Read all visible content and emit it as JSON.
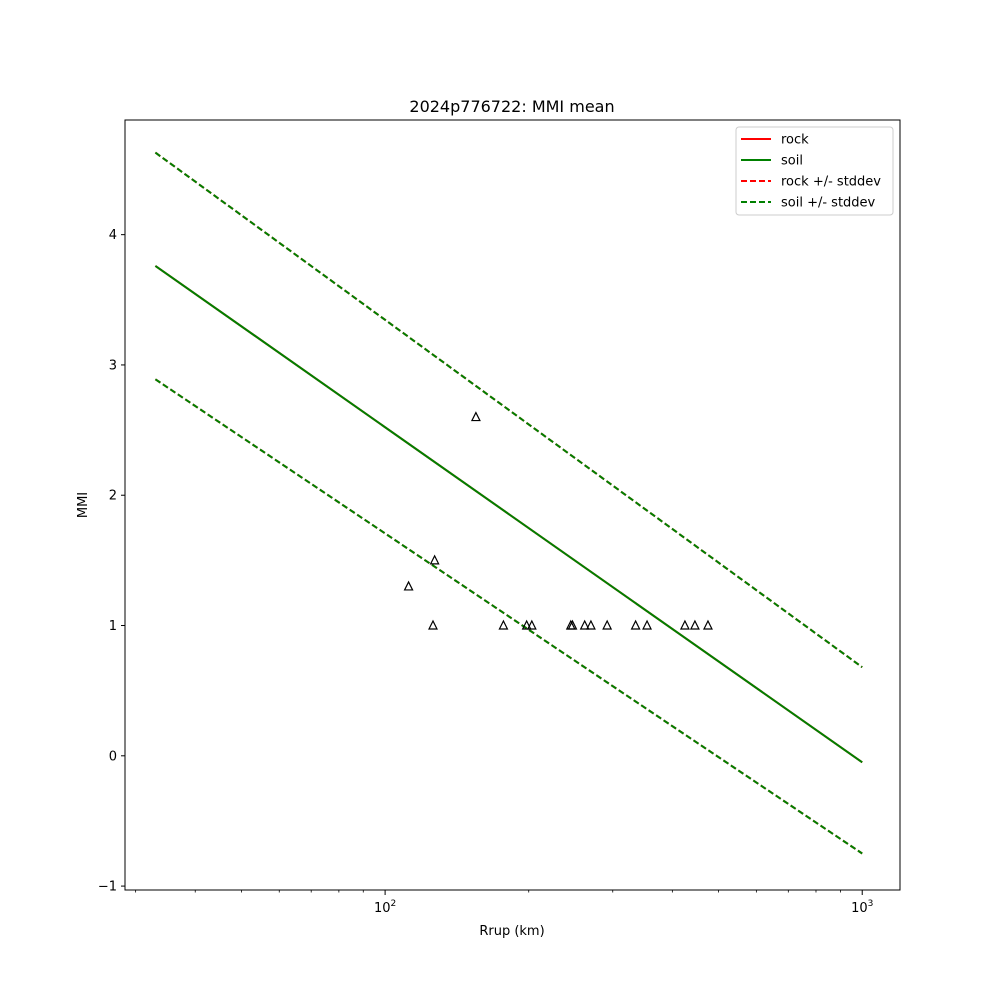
{
  "chart_data": {
    "type": "line",
    "title": "2024p776722: MMI mean",
    "xlabel": "Rrup (km)",
    "ylabel": "MMI",
    "xscale": "log",
    "xlim": [
      28.5,
      1200
    ],
    "ylim": [
      -1.03,
      4.88
    ],
    "xticks": [
      {
        "value": 100,
        "base": "10",
        "exp": "2"
      },
      {
        "value": 1000,
        "base": "10",
        "exp": "3"
      }
    ],
    "yticks": [
      {
        "value": -1,
        "label": "−1"
      },
      {
        "value": 0,
        "label": "0"
      },
      {
        "value": 1,
        "label": "1"
      },
      {
        "value": 2,
        "label": "2"
      },
      {
        "value": 3,
        "label": "3"
      },
      {
        "value": 4,
        "label": "4"
      }
    ],
    "grid": false,
    "legend_position": "top-right",
    "series": [
      {
        "name": "rock",
        "color": "#ff0000",
        "dash": "solid",
        "x": [
          33,
          1000
        ],
        "y": [
          3.76,
          -0.05
        ]
      },
      {
        "name": "soil",
        "color": "#008000",
        "dash": "solid",
        "x": [
          33,
          1000
        ],
        "y": [
          3.76,
          -0.05
        ]
      },
      {
        "name": "rock +/- stddev",
        "color": "#ff0000",
        "dash": "dashed",
        "x": [
          33,
          1000
        ],
        "y": [
          4.63,
          0.68
        ],
        "x2": [
          33,
          1000
        ],
        "y2": [
          2.89,
          -0.75
        ]
      },
      {
        "name": "soil +/- stddev",
        "color": "#008000",
        "dash": "dashed",
        "x": [
          33,
          1000
        ],
        "y": [
          4.63,
          0.68
        ],
        "x2": [
          33,
          1000
        ],
        "y2": [
          2.89,
          -0.75
        ]
      }
    ],
    "observations": {
      "marker": "triangle",
      "color": "#000000",
      "points": [
        {
          "x": 112,
          "y": 1.3
        },
        {
          "x": 127,
          "y": 1.5
        },
        {
          "x": 126,
          "y": 1.0
        },
        {
          "x": 155,
          "y": 2.6
        },
        {
          "x": 177,
          "y": 1.0
        },
        {
          "x": 198,
          "y": 1.0
        },
        {
          "x": 203,
          "y": 1.0
        },
        {
          "x": 245,
          "y": 1.0
        },
        {
          "x": 247,
          "y": 1.0
        },
        {
          "x": 262,
          "y": 1.0
        },
        {
          "x": 270,
          "y": 1.0
        },
        {
          "x": 292,
          "y": 1.0
        },
        {
          "x": 335,
          "y": 1.0
        },
        {
          "x": 354,
          "y": 1.0
        },
        {
          "x": 425,
          "y": 1.0
        },
        {
          "x": 446,
          "y": 1.0
        },
        {
          "x": 475,
          "y": 1.0
        }
      ]
    }
  }
}
